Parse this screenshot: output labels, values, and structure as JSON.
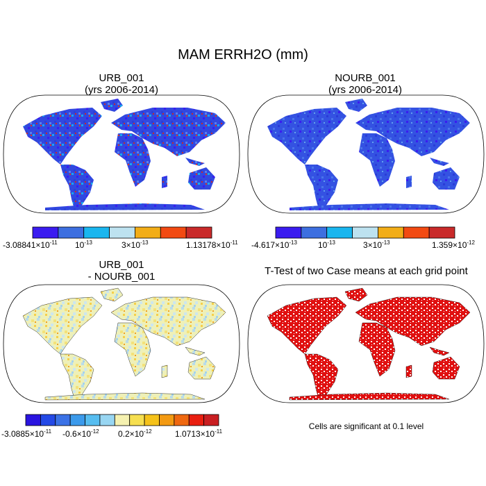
{
  "main_title": "MAM ERRH2O (mm)",
  "panels": [
    {
      "title_line1": "URB_001",
      "title_line2": "(yrs 2006-2014)",
      "colorbar": {
        "colors": [
          "#3a1cf0",
          "#3d6fe0",
          "#1ab6ef",
          "#bde2f0",
          "#f2ad17",
          "#f24a12",
          "#c92a2a"
        ],
        "labels": [
          {
            "mant": "-3.08841×10",
            "exp": "-11"
          },
          {
            "mant": "10",
            "exp": "-13"
          },
          {
            "mant": "3×10",
            "exp": "-13"
          },
          {
            "mant": "1.13178×10",
            "exp": "-11"
          }
        ]
      }
    },
    {
      "title_line1": "NOURB_001",
      "title_line2": "(yrs 2006-2014)",
      "colorbar": {
        "colors": [
          "#3a1cf0",
          "#3d6fe0",
          "#1ab6ef",
          "#bde2f0",
          "#f2ad17",
          "#f24a12",
          "#c92a2a"
        ],
        "labels": [
          {
            "mant": "-4.617×10",
            "exp": "-13"
          },
          {
            "mant": "10",
            "exp": "-13"
          },
          {
            "mant": "3×10",
            "exp": "-13"
          },
          {
            "mant": "1.359×10",
            "exp": "-12"
          }
        ]
      }
    },
    {
      "title_line1": "URB_001",
      "title_line2": "- NOURB_001",
      "colorbar": {
        "colors": [
          "#2a14e0",
          "#2449e6",
          "#3b72e6",
          "#3b9aeb",
          "#56bdf0",
          "#98d6f2",
          "#f5f1b0",
          "#f6df50",
          "#f5c21a",
          "#f39a12",
          "#ef6810",
          "#e91f10",
          "#c91f22"
        ],
        "labels": [
          {
            "mant": "-3.0885×10",
            "exp": "-11"
          },
          {
            "mant": "-0.6×10",
            "exp": "-12"
          },
          {
            "mant": "0.2×10",
            "exp": "-12"
          },
          {
            "mant": "1.0713×10",
            "exp": "-11"
          }
        ]
      }
    },
    {
      "title_line1": "T-Test of two Case means at each grid point",
      "note": "Cells are significant at 0.1 level"
    }
  ],
  "colors": {
    "map_background": "#ffffff",
    "outline": "#000000",
    "significant": "#e01010"
  }
}
